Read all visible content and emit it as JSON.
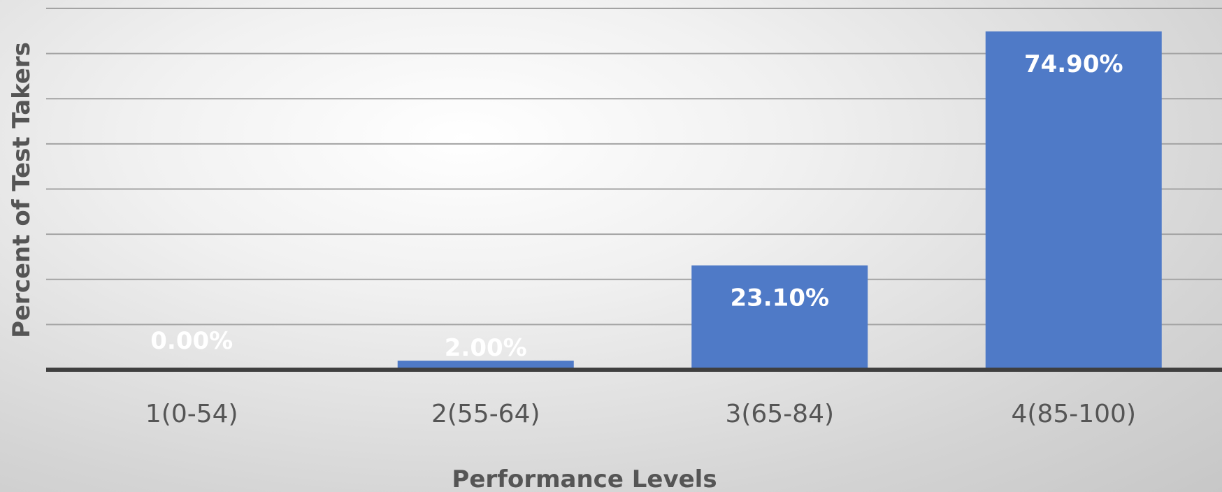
{
  "chart_data": {
    "type": "bar",
    "title": "",
    "xlabel": "Performance Levels",
    "ylabel": "Percent of Test Takers",
    "categories": [
      "1(0-54)",
      "2(55-64)",
      "3(65-84)",
      "4(85-100)"
    ],
    "values": [
      0.0,
      2.0,
      23.1,
      74.9
    ],
    "data_labels": [
      "0.00%",
      "2.00%",
      "23.10%",
      "74.90%"
    ],
    "ylim": [
      0,
      80
    ],
    "grid": true,
    "legend": "none",
    "bar_color": "#4f7ac7"
  }
}
